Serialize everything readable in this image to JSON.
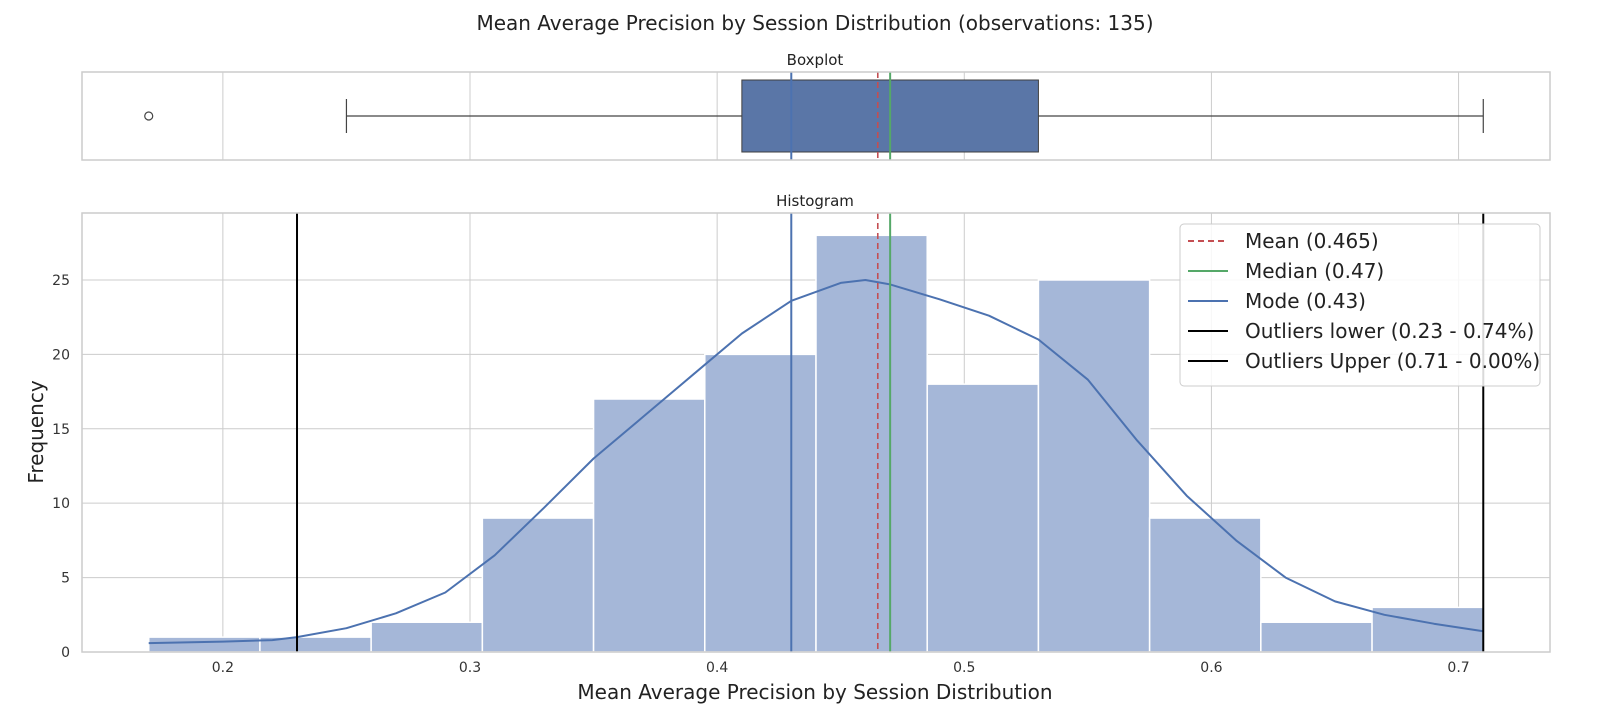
{
  "chart_data": {
    "type": "histogram",
    "title": "Mean Average Precision by Session Distribution (observations: 135)",
    "xlabel": "Mean Average Precision by Session Distribution",
    "ylabel": "Frequency",
    "xlim": [
      0.143,
      0.737
    ],
    "grid": true,
    "colors": {
      "bars": "#a5b7d8",
      "box": "#5a76a7",
      "kde": "#4c72b0",
      "mean": "#c44e52",
      "median": "#55a868",
      "mode": "#4c72b0",
      "outlier_lines": "#000000",
      "grid": "#cccccc",
      "frame": "#cccccc"
    },
    "boxplot": {
      "title": "Boxplot",
      "q1": 0.41,
      "median": 0.47,
      "q3": 0.53,
      "whisker_low": 0.25,
      "whisker_high": 0.71,
      "fliers": [
        0.17
      ]
    },
    "histogram": {
      "title": "Histogram",
      "ylim": [
        0,
        29.5
      ],
      "x_ticks": [
        "0.2",
        "0.3",
        "0.4",
        "0.5",
        "0.6",
        "0.7"
      ],
      "y_ticks": [
        "0",
        "5",
        "10",
        "15",
        "20",
        "25"
      ],
      "bins": [
        {
          "x0": 0.17,
          "x1": 0.215,
          "count": 1
        },
        {
          "x0": 0.215,
          "x1": 0.26,
          "count": 1
        },
        {
          "x0": 0.26,
          "x1": 0.305,
          "count": 2
        },
        {
          "x0": 0.305,
          "x1": 0.35,
          "count": 9
        },
        {
          "x0": 0.35,
          "x1": 0.395,
          "count": 17
        },
        {
          "x0": 0.395,
          "x1": 0.44,
          "count": 20
        },
        {
          "x0": 0.44,
          "x1": 0.485,
          "count": 28
        },
        {
          "x0": 0.485,
          "x1": 0.53,
          "count": 18
        },
        {
          "x0": 0.53,
          "x1": 0.575,
          "count": 25
        },
        {
          "x0": 0.575,
          "x1": 0.62,
          "count": 9
        },
        {
          "x0": 0.62,
          "x1": 0.665,
          "count": 2
        },
        {
          "x0": 0.665,
          "x1": 0.71,
          "count": 3
        }
      ],
      "kde": [
        [
          0.17,
          0.6
        ],
        [
          0.2,
          0.7
        ],
        [
          0.22,
          0.8
        ],
        [
          0.23,
          1.0
        ],
        [
          0.25,
          1.6
        ],
        [
          0.27,
          2.6
        ],
        [
          0.29,
          4.0
        ],
        [
          0.31,
          6.5
        ],
        [
          0.33,
          9.7
        ],
        [
          0.35,
          13.0
        ],
        [
          0.37,
          15.8
        ],
        [
          0.39,
          18.6
        ],
        [
          0.41,
          21.4
        ],
        [
          0.43,
          23.6
        ],
        [
          0.45,
          24.8
        ],
        [
          0.46,
          25.0
        ],
        [
          0.47,
          24.7
        ],
        [
          0.49,
          23.7
        ],
        [
          0.51,
          22.6
        ],
        [
          0.53,
          21.0
        ],
        [
          0.55,
          18.3
        ],
        [
          0.57,
          14.2
        ],
        [
          0.59,
          10.5
        ],
        [
          0.61,
          7.5
        ],
        [
          0.63,
          5.0
        ],
        [
          0.65,
          3.4
        ],
        [
          0.67,
          2.5
        ],
        [
          0.69,
          1.9
        ],
        [
          0.71,
          1.4
        ]
      ]
    },
    "reference_lines": {
      "mean": 0.465,
      "median": 0.47,
      "mode": 0.43,
      "outliers_lower": 0.23,
      "outliers_upper": 0.71
    },
    "legend": {
      "position": "top-right",
      "entries": [
        {
          "label": "Mean (0.465)",
          "style": "dashed",
          "color": "#c44e52"
        },
        {
          "label": "Median (0.47)",
          "style": "solid",
          "color": "#55a868"
        },
        {
          "label": "Mode (0.43)",
          "style": "solid",
          "color": "#4c72b0"
        },
        {
          "label": "Outliers lower (0.23 - 0.74%)",
          "style": "solid",
          "color": "#000000"
        },
        {
          "label": "Outliers Upper (0.71 - 0.00%)",
          "style": "solid",
          "color": "#000000"
        }
      ]
    }
  }
}
